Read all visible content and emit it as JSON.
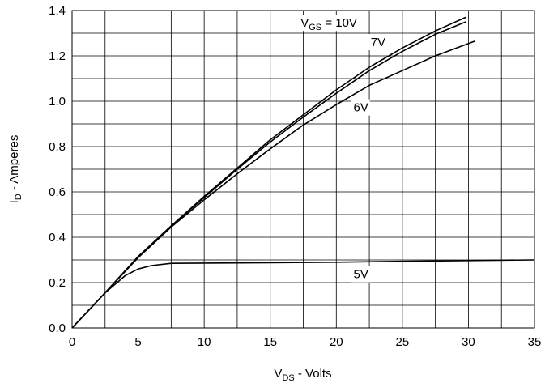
{
  "chart_data": {
    "type": "line",
    "xlabel": {
      "main": "V",
      "sub": "DS",
      "rest": " - Volts"
    },
    "ylabel": {
      "main": "I",
      "sub": "D",
      "rest": " - Amperes"
    },
    "xlim": [
      0,
      35
    ],
    "ylim": [
      0,
      1.4
    ],
    "xticks": [
      0,
      5,
      10,
      15,
      20,
      25,
      30,
      35
    ],
    "xtick_labels": [
      "0",
      "5",
      "10",
      "15",
      "20",
      "25",
      "30",
      "35"
    ],
    "yticks": [
      0,
      0.2,
      0.4,
      0.6,
      0.8,
      1.0,
      1.2,
      1.4
    ],
    "ytick_labels": [
      "0.0",
      "0.2",
      "0.4",
      "0.6",
      "0.8",
      "1.0",
      "1.2",
      "1.4"
    ],
    "grid": true,
    "series": [
      {
        "name": "V_GS = 10V",
        "x": [
          0,
          2.5,
          5,
          7.5,
          10,
          12.5,
          15,
          17.5,
          20,
          22.5,
          25,
          27.5,
          29.8
        ],
        "y": [
          0,
          0.155,
          0.315,
          0.45,
          0.58,
          0.705,
          0.83,
          0.94,
          1.05,
          1.15,
          1.235,
          1.31,
          1.37
        ]
      },
      {
        "name": "7V",
        "x": [
          0,
          2.5,
          5,
          7.5,
          10,
          12.5,
          15,
          17.5,
          20,
          22.5,
          25,
          27.5,
          29.8
        ],
        "y": [
          0,
          0.155,
          0.315,
          0.45,
          0.575,
          0.7,
          0.82,
          0.93,
          1.035,
          1.135,
          1.22,
          1.295,
          1.35
        ]
      },
      {
        "name": "6V",
        "x": [
          0,
          2.5,
          5,
          7.5,
          10,
          12.5,
          15,
          17.5,
          20,
          22.5,
          25,
          27.5,
          30.5
        ],
        "y": [
          0,
          0.155,
          0.31,
          0.445,
          0.565,
          0.68,
          0.79,
          0.895,
          0.985,
          1.07,
          1.135,
          1.2,
          1.265
        ]
      },
      {
        "name": "5V",
        "x": [
          0,
          2.5,
          4,
          5,
          6,
          7.5,
          10,
          15,
          20,
          25,
          30,
          35
        ],
        "y": [
          0,
          0.155,
          0.23,
          0.26,
          0.275,
          0.285,
          0.286,
          0.288,
          0.29,
          0.294,
          0.297,
          0.3
        ]
      }
    ],
    "annotations": [
      {
        "text": "V",
        "sub": "GS",
        "rest": " = 10V",
        "series": "V_GS = 10V"
      },
      {
        "text": "7V",
        "series": "7V"
      },
      {
        "text": "6V",
        "series": "6V"
      },
      {
        "text": "5V",
        "series": "5V"
      }
    ]
  }
}
